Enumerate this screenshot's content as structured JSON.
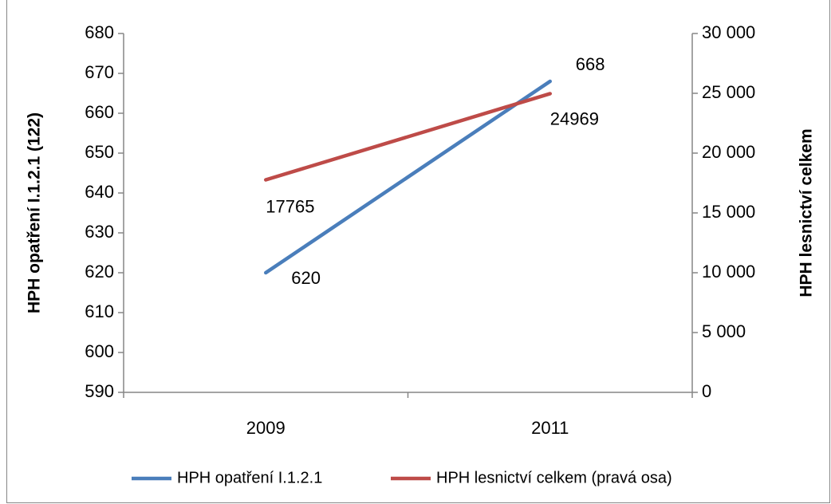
{
  "chart_data": {
    "type": "line",
    "categories": [
      "2009",
      "2011"
    ],
    "series": [
      {
        "name": "HPH opatření I.1.2.1",
        "color": "#4a7ebb",
        "values": [
          620,
          668
        ]
      },
      {
        "name": "HPH lesnictví celkem (pravá osa)",
        "color": "#be4b48",
        "axis": "y2",
        "values": [
          17765,
          24969
        ]
      }
    ],
    "ylabel": "HPH opatření I.1.2.1 (122)",
    "y2label": "HPH lesnictví celkem",
    "ylim": [
      590,
      680
    ],
    "yticks": [
      590,
      600,
      610,
      620,
      630,
      640,
      650,
      660,
      670,
      680
    ],
    "y2lim": [
      0,
      30000
    ],
    "y2ticks": [
      0,
      {
        "value": 5000,
        "label": "5 000"
      },
      {
        "value": 10000,
        "label": "10 000"
      },
      {
        "value": 15000,
        "label": "15 000"
      },
      {
        "value": 20000,
        "label": "20 000"
      },
      {
        "value": 25000,
        "label": "25 000"
      },
      {
        "value": 30000,
        "label": "30 000"
      }
    ],
    "legend": "bottom",
    "grid": false
  }
}
